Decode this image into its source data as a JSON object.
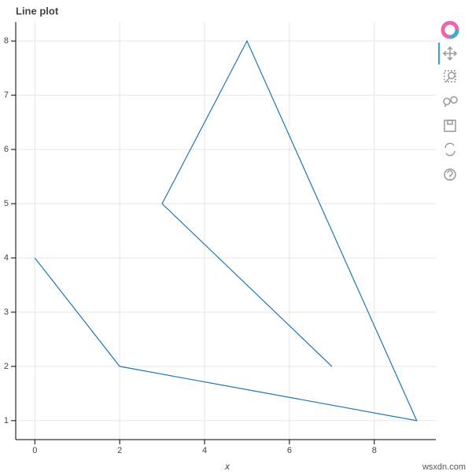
{
  "chart_data": {
    "type": "line",
    "title": "Line plot",
    "x_label": "x",
    "x": [
      0,
      2,
      9,
      5,
      3,
      7
    ],
    "series": [
      {
        "values": [
          4,
          2,
          1,
          8,
          5,
          2
        ],
        "color": "#1f77b4"
      }
    ],
    "xlim": [
      -0.45,
      9.45
    ],
    "ylim": [
      0.65,
      8.35
    ],
    "xticks": [
      0,
      2,
      4,
      6,
      8
    ],
    "yticks": [
      1,
      2,
      3,
      4,
      5,
      6,
      7,
      8
    ],
    "grid": true
  },
  "watermark": "wsxdn.com"
}
